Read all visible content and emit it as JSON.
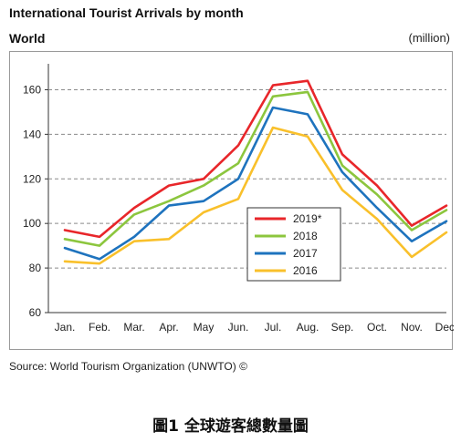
{
  "header": {
    "title": "International Tourist Arrivals by month",
    "subtitle": "World",
    "unit": "(million)"
  },
  "footer": {
    "source": "Source: World Tourism Organization (UNWTO) ©",
    "caption": "圖1 全球遊客總數量圖"
  },
  "chart_data": {
    "type": "line",
    "title": "International Tourist Arrivals by month",
    "subtitle": "World",
    "ylabel": "(million)",
    "categories": [
      "Jan.",
      "Feb.",
      "Mar.",
      "Apr.",
      "May",
      "Jun.",
      "Jul.",
      "Aug.",
      "Sep.",
      "Oct.",
      "Nov.",
      "Dec."
    ],
    "ylim": [
      60,
      170
    ],
    "yticks": [
      60,
      80,
      100,
      120,
      140,
      160
    ],
    "grid": "horizontal dashed",
    "legend_position": "center-right",
    "series": [
      {
        "name": "2019*",
        "color": "#e8262a",
        "values": [
          97,
          94,
          107,
          117,
          120,
          135,
          162,
          164,
          131,
          117,
          99,
          108
        ]
      },
      {
        "name": "2018",
        "color": "#8cc63e",
        "values": [
          93,
          90,
          104,
          110,
          117,
          127,
          157,
          159,
          126,
          113,
          97,
          106
        ]
      },
      {
        "name": "2017",
        "color": "#1e73be",
        "values": [
          89,
          84,
          94,
          108,
          110,
          120,
          152,
          149,
          123,
          107,
          92,
          101
        ]
      },
      {
        "name": "2016",
        "color": "#f9c02b",
        "values": [
          83,
          82,
          92,
          93,
          105,
          111,
          143,
          139,
          115,
          102,
          85,
          96
        ]
      }
    ]
  }
}
